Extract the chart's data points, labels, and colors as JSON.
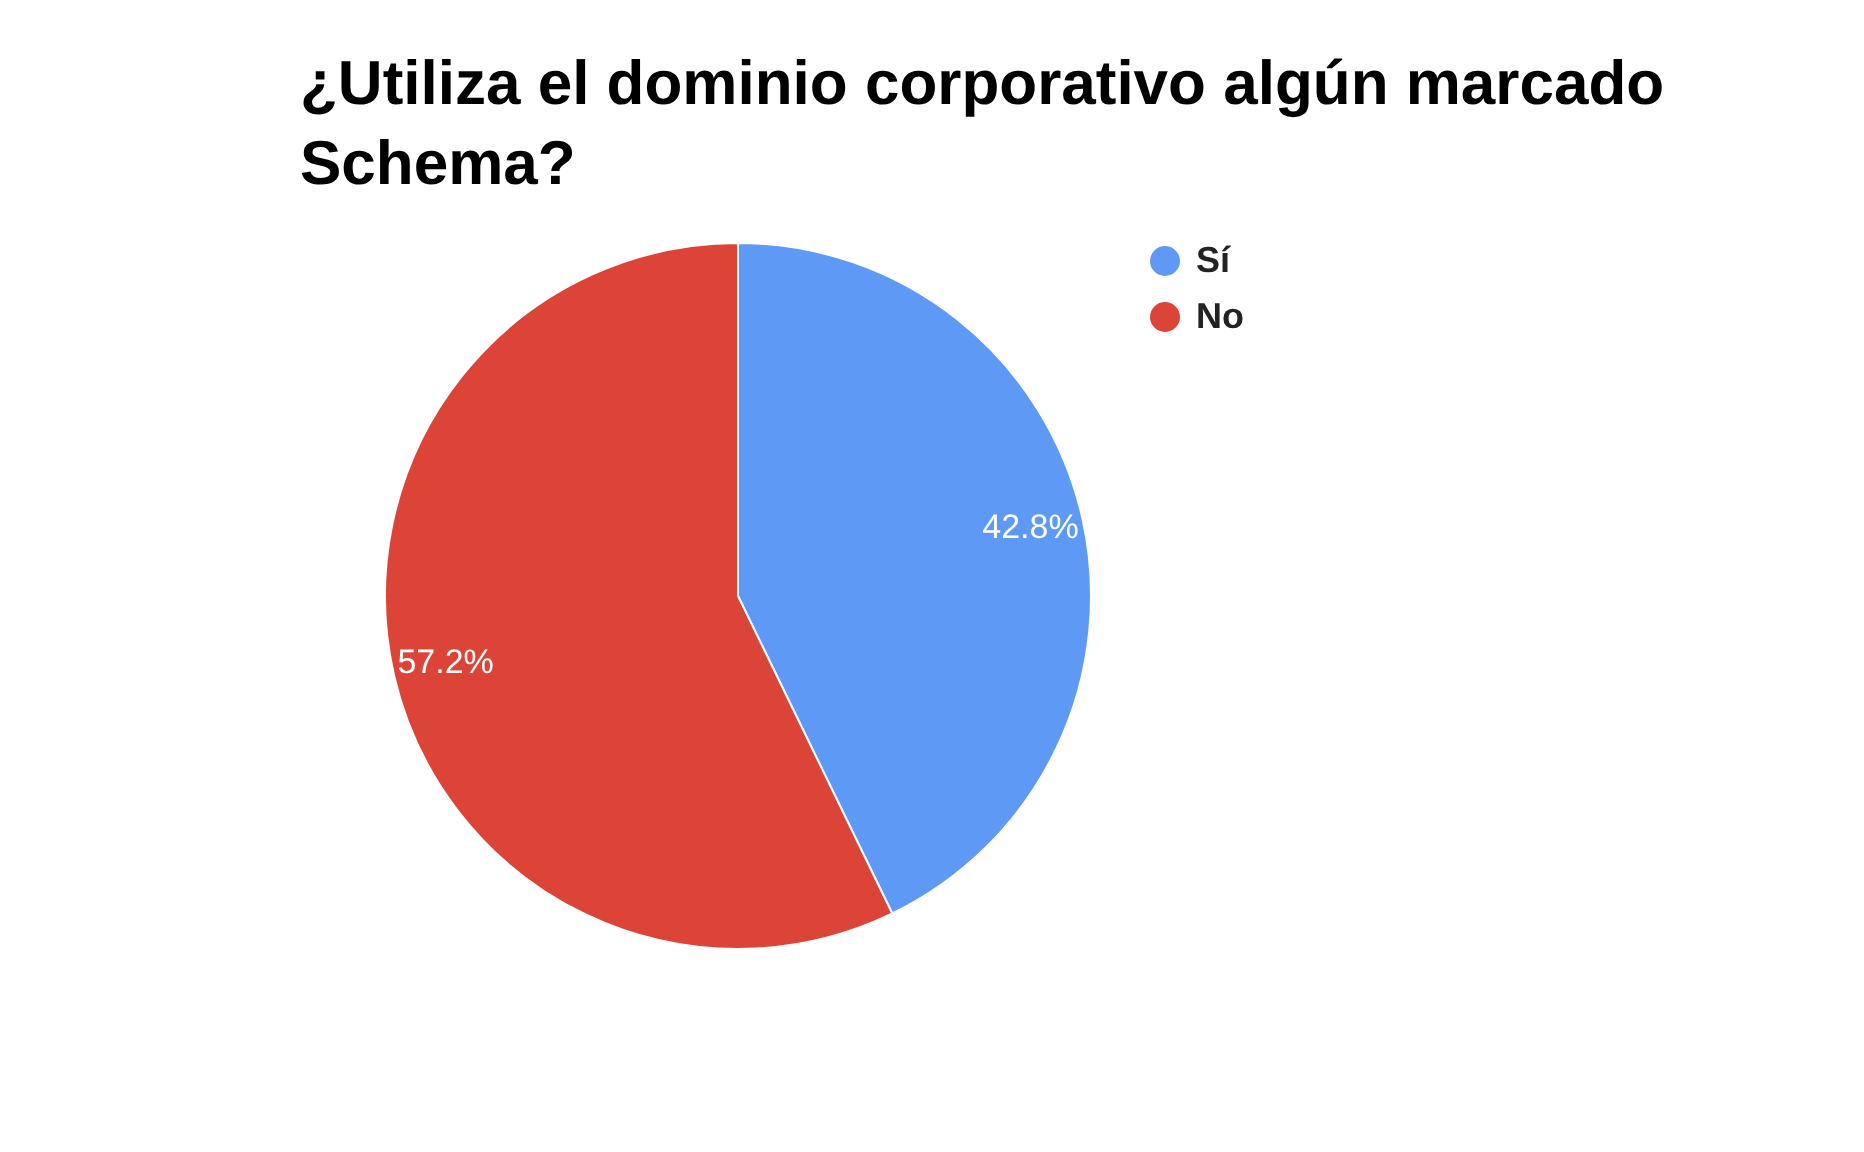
{
  "chart_data": {
    "type": "pie",
    "title": "¿Utiliza el dominio corporativo algún marcado Schema?",
    "categories": [
      "Sí",
      "No"
    ],
    "values": [
      42.8,
      57.2
    ],
    "value_labels": [
      "42.8%",
      "57.2%"
    ],
    "colors": [
      "#5e99f5",
      "#db4437"
    ],
    "legend": "top right"
  }
}
